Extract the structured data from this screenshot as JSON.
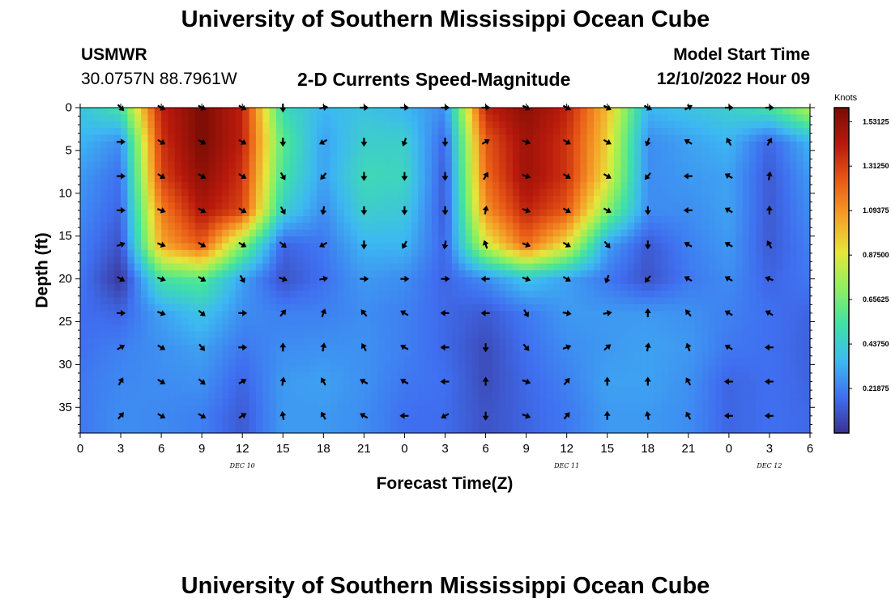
{
  "page": {
    "title_top": "University of Southern Mississippi Ocean Cube",
    "title_bottom": "University of Southern Mississippi Ocean Cube"
  },
  "header": {
    "station": "USMWR",
    "coords": "30.0757N  88.7961W",
    "product": "2-D Currents Speed-Magnitude",
    "model_label": "Model Start Time",
    "model_time": "12/10/2022 Hour 09"
  },
  "colors": {
    "palette": [
      "#3b2f8f",
      "#3f6ff0",
      "#3db8f2",
      "#3fe0a8",
      "#8bf060",
      "#e6e63c",
      "#f5a028",
      "#e85a16",
      "#b81a0c",
      "#7a0d05"
    ]
  },
  "chart_data": {
    "type": "heatmap",
    "xlabel": "Forecast Time(Z)",
    "ylabel": "Depth (ft)",
    "x_range_hours": [
      0,
      54
    ],
    "y_range_ft": [
      0,
      38
    ],
    "x_ticks": [
      0,
      3,
      6,
      9,
      12,
      15,
      18,
      21,
      24,
      27,
      30,
      33,
      36,
      39,
      42,
      45,
      48,
      51,
      54
    ],
    "x_tick_labels": [
      "0",
      "3",
      "6",
      "9",
      "12",
      "15",
      "18",
      "21",
      "0",
      "3",
      "6",
      "9",
      "12",
      "15",
      "18",
      "21",
      "0",
      "3",
      "6"
    ],
    "y_ticks": [
      0,
      5,
      10,
      15,
      20,
      25,
      30,
      35
    ],
    "y_tick_labels": [
      "0",
      "5",
      "10",
      "15",
      "20",
      "25",
      "30",
      "35"
    ],
    "date_labels": [
      {
        "text": "DEC 10",
        "hour": 12
      },
      {
        "text": "DEC 11",
        "hour": 36
      },
      {
        "text": "DEC 12",
        "hour": 51
      }
    ],
    "colorbar": {
      "label": "Knots",
      "min": 0.0,
      "max": 1.6,
      "ticks": [
        0.21875,
        0.4375,
        0.65625,
        0.875,
        1.09375,
        1.3125,
        1.53125
      ],
      "tick_labels": [
        "0.21875",
        "0.43750",
        "0.65625",
        "0.87500",
        "1.09375",
        "1.31250",
        "1.53125"
      ]
    },
    "speed_grid": {
      "hours": [
        0,
        3,
        6,
        9,
        12,
        15,
        18,
        21,
        24,
        27,
        30,
        33,
        36,
        39,
        42,
        45,
        48,
        51,
        54
      ],
      "depths": [
        0,
        4,
        8,
        12,
        16,
        20,
        24,
        28,
        32,
        36,
        38
      ],
      "knots": [
        [
          0.4,
          0.55,
          1.4,
          1.6,
          1.4,
          0.5,
          0.35,
          0.4,
          0.35,
          0.25,
          1.4,
          1.55,
          1.4,
          1.0,
          0.35,
          0.4,
          0.45,
          0.55,
          0.8
        ],
        [
          0.35,
          0.25,
          1.35,
          1.6,
          1.4,
          0.6,
          0.3,
          0.45,
          0.45,
          0.15,
          1.25,
          1.5,
          1.35,
          0.95,
          0.25,
          0.3,
          0.35,
          0.15,
          0.35
        ],
        [
          0.28,
          0.18,
          1.3,
          1.55,
          1.35,
          0.55,
          0.3,
          0.5,
          0.48,
          0.12,
          1.2,
          1.5,
          1.35,
          0.9,
          0.25,
          0.28,
          0.3,
          0.12,
          0.28
        ],
        [
          0.25,
          0.15,
          1.15,
          1.45,
          1.3,
          0.45,
          0.25,
          0.45,
          0.42,
          0.12,
          1.1,
          1.4,
          1.25,
          0.7,
          0.25,
          0.25,
          0.3,
          0.12,
          0.25
        ],
        [
          0.22,
          0.1,
          1.05,
          1.25,
          0.7,
          0.15,
          0.2,
          0.35,
          0.35,
          0.15,
          0.85,
          1.2,
          0.9,
          0.3,
          0.12,
          0.22,
          0.28,
          0.12,
          0.22
        ],
        [
          0.2,
          0.02,
          0.55,
          0.6,
          0.3,
          0.1,
          0.18,
          0.28,
          0.25,
          0.15,
          0.25,
          0.4,
          0.3,
          0.2,
          0.1,
          0.2,
          0.25,
          0.15,
          0.2
        ],
        [
          0.18,
          0.15,
          0.3,
          0.4,
          0.25,
          0.22,
          0.22,
          0.25,
          0.22,
          0.16,
          0.12,
          0.2,
          0.28,
          0.28,
          0.28,
          0.26,
          0.22,
          0.18,
          0.15
        ],
        [
          0.18,
          0.22,
          0.26,
          0.3,
          0.2,
          0.25,
          0.26,
          0.26,
          0.22,
          0.16,
          0.08,
          0.18,
          0.25,
          0.28,
          0.3,
          0.28,
          0.2,
          0.18,
          0.14
        ],
        [
          0.2,
          0.24,
          0.25,
          0.26,
          0.15,
          0.28,
          0.3,
          0.26,
          0.2,
          0.18,
          0.08,
          0.16,
          0.22,
          0.3,
          0.3,
          0.26,
          0.15,
          0.18,
          0.15
        ],
        [
          0.2,
          0.25,
          0.24,
          0.22,
          0.12,
          0.28,
          0.28,
          0.25,
          0.18,
          0.17,
          0.1,
          0.15,
          0.2,
          0.28,
          0.28,
          0.25,
          0.15,
          0.18,
          0.16
        ],
        [
          0.2,
          0.25,
          0.24,
          0.22,
          0.12,
          0.28,
          0.28,
          0.25,
          0.18,
          0.17,
          0.1,
          0.15,
          0.2,
          0.28,
          0.28,
          0.25,
          0.15,
          0.18,
          0.16
        ]
      ]
    },
    "vectors": {
      "hours": [
        3,
        6,
        9,
        12,
        15,
        18,
        21,
        24,
        27,
        30,
        33,
        36,
        39,
        42,
        45,
        48,
        51
      ],
      "depths": [
        0,
        4,
        8,
        12,
        16,
        20,
        24,
        28,
        32,
        36
      ],
      "direction_deg": [
        [
          135,
          120,
          120,
          120,
          180,
          80,
          90,
          90,
          90,
          90,
          120,
          120,
          120,
          120,
          60,
          90,
          90
        ],
        [
          90,
          120,
          120,
          120,
          180,
          240,
          180,
          200,
          180,
          60,
          110,
          120,
          120,
          200,
          300,
          330,
          30
        ],
        [
          90,
          120,
          120,
          120,
          150,
          220,
          180,
          180,
          180,
          30,
          110,
          120,
          120,
          220,
          270,
          300,
          10
        ],
        [
          90,
          110,
          120,
          120,
          150,
          190,
          180,
          180,
          180,
          10,
          110,
          120,
          120,
          180,
          270,
          300,
          0
        ],
        [
          70,
          110,
          120,
          120,
          130,
          240,
          180,
          210,
          190,
          340,
          110,
          120,
          140,
          180,
          300,
          300,
          330
        ],
        [
          120,
          110,
          120,
          150,
          110,
          80,
          90,
          90,
          90,
          270,
          110,
          120,
          200,
          220,
          300,
          300,
          290
        ],
        [
          90,
          110,
          130,
          90,
          40,
          20,
          320,
          300,
          270,
          270,
          150,
          100,
          80,
          0,
          320,
          300,
          300
        ],
        [
          60,
          120,
          140,
          90,
          0,
          10,
          330,
          300,
          270,
          180,
          140,
          70,
          50,
          10,
          340,
          300,
          270
        ],
        [
          30,
          120,
          130,
          60,
          10,
          330,
          300,
          300,
          270,
          0,
          110,
          40,
          0,
          0,
          330,
          270,
          270
        ],
        [
          40,
          120,
          120,
          60,
          350,
          330,
          300,
          270,
          240,
          180,
          110,
          40,
          0,
          350,
          330,
          270,
          270
        ]
      ]
    }
  }
}
